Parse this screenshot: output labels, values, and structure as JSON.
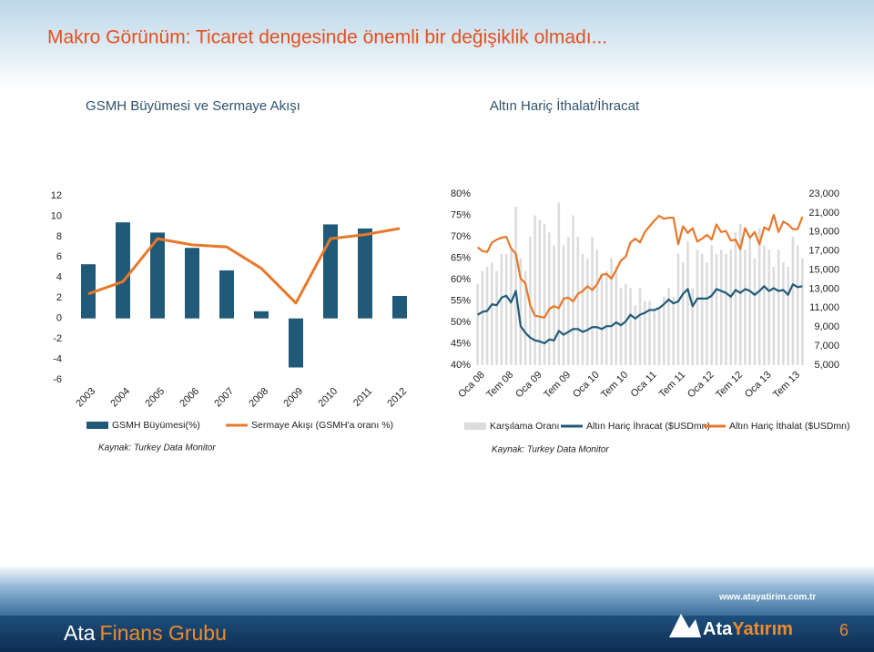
{
  "title": "Makro Görünüm:  Ticaret dengesinde önemli bir değişiklik olmadı...",
  "footer": {
    "company_a": "Ata",
    "company_b": "Finans Grubu",
    "url": "www.atayatirim.com.tr",
    "logo_a": "Ata",
    "logo_b": "Yatırım",
    "page": "6"
  },
  "chart_data": [
    {
      "type": "bar_line",
      "title": "GSMH Büyümesi ve Sermaye Akışı",
      "categories": [
        "2003",
        "2004",
        "2005",
        "2006",
        "2007",
        "2008",
        "2009",
        "2010",
        "2011",
        "2012"
      ],
      "series": [
        {
          "name": "GSMH Büyümesi(%)",
          "type": "bar",
          "color": "#215a78",
          "values": [
            5.3,
            9.4,
            8.4,
            6.9,
            4.7,
            0.7,
            -4.8,
            9.2,
            8.8,
            2.2
          ]
        },
        {
          "name": "Sermaye Akışı (GSMH'a oranı %)",
          "type": "line",
          "color": "#e8782a",
          "values": [
            2.4,
            3.6,
            7.8,
            7.2,
            7.0,
            4.9,
            1.5,
            7.8,
            8.2,
            8.8
          ]
        }
      ],
      "ylim": [
        -6,
        12
      ],
      "yticks": [
        -6,
        -4,
        -2,
        0,
        2,
        4,
        6,
        8,
        10,
        12
      ],
      "source": "Kaynak: Turkey Data Monitor"
    },
    {
      "type": "bar_line",
      "title": "Altın Hariç İthalat/İhracat",
      "categories": [
        "Oca 08",
        null,
        null,
        null,
        null,
        null,
        "Tem 08",
        null,
        null,
        null,
        null,
        null,
        "Oca 09",
        null,
        null,
        null,
        null,
        null,
        "Tem 09",
        null,
        null,
        null,
        null,
        null,
        "Oca 10",
        null,
        null,
        null,
        null,
        null,
        "Tem 10",
        null,
        null,
        null,
        null,
        null,
        "Oca 11",
        null,
        null,
        null,
        null,
        null,
        "Tem 11",
        null,
        null,
        null,
        null,
        null,
        "Oca 12",
        null,
        null,
        null,
        null,
        null,
        "Tem 12",
        null,
        null,
        null,
        null,
        null,
        "Oca 13",
        null,
        null,
        null,
        null,
        null,
        "Tem 13",
        null,
        null
      ],
      "series": [
        {
          "name": "Karşılama Oranı",
          "type": "bar",
          "color": "#dcdcdc",
          "values": [
            59,
            62,
            63,
            64,
            62,
            66,
            66,
            67,
            77,
            65,
            62,
            70,
            75,
            74,
            73,
            71,
            68,
            78,
            68,
            70,
            75,
            70,
            66,
            65,
            70,
            67,
            61,
            62,
            65,
            63,
            58,
            59,
            58,
            54,
            58,
            55,
            55,
            53,
            53,
            56,
            58,
            56,
            66,
            64,
            69,
            58,
            67,
            66,
            64,
            68,
            66,
            67,
            66,
            67,
            71,
            73,
            67,
            70,
            65,
            72,
            68,
            67,
            63,
            67,
            64,
            63,
            70,
            68,
            65
          ]
        },
        {
          "name": "Altın Hariç İhracat ($USDmn)",
          "type": "line",
          "axis": "y2",
          "color": "#215a78",
          "values": [
            10300,
            10600,
            10700,
            11400,
            11300,
            12100,
            12300,
            11600,
            12800,
            9100,
            8400,
            7900,
            7600,
            7500,
            7300,
            7700,
            7600,
            8600,
            8200,
            8500,
            8800,
            8800,
            8500,
            8700,
            9000,
            9000,
            8800,
            9100,
            9100,
            9500,
            9200,
            9600,
            10300,
            9900,
            10300,
            10500,
            10800,
            10800,
            11000,
            11400,
            11900,
            11500,
            11700,
            12500,
            13000,
            11200,
            12000,
            12000,
            12000,
            12300,
            13000,
            12800,
            12600,
            12200,
            12900,
            12600,
            13000,
            12800,
            12400,
            12800,
            13300,
            12800,
            13100,
            12800,
            12900,
            12400,
            13500,
            13200,
            13300
          ]
        },
        {
          "name": "Altın Hariç İthalat ($USDmn)",
          "type": "line",
          "axis": "y2",
          "color": "#e8782a",
          "values": [
            17400,
            17000,
            16900,
            17900,
            18200,
            18400,
            18500,
            17300,
            16700,
            14100,
            13600,
            11300,
            10200,
            10100,
            10000,
            10900,
            11200,
            11000,
            12000,
            12100,
            11700,
            12500,
            12800,
            13300,
            12900,
            13500,
            14500,
            14600,
            14100,
            15000,
            16000,
            16400,
            17900,
            18300,
            17900,
            19000,
            19600,
            20200,
            20700,
            20400,
            20500,
            20500,
            17700,
            19600,
            18900,
            19400,
            18000,
            18300,
            18700,
            18200,
            19800,
            19000,
            19100,
            18100,
            18200,
            17200,
            19400,
            18400,
            19000,
            17700,
            19500,
            19200,
            20800,
            19000,
            20100,
            19800,
            19300,
            19300,
            20600
          ]
        }
      ],
      "ylim": [
        40,
        80
      ],
      "yticks": [
        {
          "value": 40,
          "label": "40%"
        },
        {
          "value": 45,
          "label": "45%"
        },
        {
          "value": 50,
          "label": "50%"
        },
        {
          "value": 55,
          "label": "55%"
        },
        {
          "value": 60,
          "label": "60%"
        },
        {
          "value": 65,
          "label": "65%"
        },
        {
          "value": 70,
          "label": "70%"
        },
        {
          "value": 75,
          "label": "75%"
        },
        {
          "value": 80,
          "label": "80%"
        }
      ],
      "y2lim": [
        5000,
        23000
      ],
      "y2ticks": [
        {
          "value": 5000,
          "label": "5,000"
        },
        {
          "value": 7000,
          "label": "7,000"
        },
        {
          "value": 9000,
          "label": "9,000"
        },
        {
          "value": 11000,
          "label": "11,000"
        },
        {
          "value": 13000,
          "label": "13,000"
        },
        {
          "value": 15000,
          "label": "15,000"
        },
        {
          "value": 17000,
          "label": "17,000"
        },
        {
          "value": 19000,
          "label": "19,000"
        },
        {
          "value": 21000,
          "label": "21,000"
        },
        {
          "value": 23000,
          "label": "23,000"
        }
      ],
      "source": "Kaynak: Turkey Data Monitor"
    }
  ]
}
